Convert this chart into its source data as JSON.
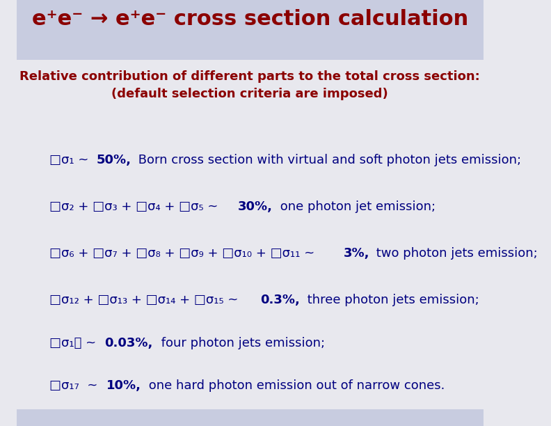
{
  "title": "e⁺e⁻ → e⁺e⁻ cross section calculation",
  "title_color": "#8B0000",
  "header_bg": "#C8CCE0",
  "body_bg": "#E8E8EE",
  "subtitle": "Relative contribution of different parts to the total cross section:\n(default selection criteria are imposed)",
  "subtitle_color": "#8B0000",
  "text_color": "#000080",
  "bold_color": "#000080",
  "lines": [
    {
      "prefix": "□σ₁ ~ ",
      "bold": "50%,",
      "rest": " Born cross section with virtual and soft photon jets emission;"
    },
    {
      "prefix": "□σ₂ + □σ₃ + □σ₄ + □σ₅ ~ ",
      "bold": "30%,",
      "rest": " one photon jet emission;"
    },
    {
      "prefix": "□σ₆ + □σ₇ + □σ₈ + □σ₉ + □σ₁₀ + □σ₁₁ ~ ",
      "bold": "3%,",
      "rest": " two photon jets emission;"
    },
    {
      "prefix": "□σ₁₂ + □σ₁₃ + □σ₁₄ + □σ₁₅ ~ ",
      "bold": "0.3%,",
      "rest": " three photon jets emission;"
    },
    {
      "prefix": "□σ₁⁦ ~ ",
      "bold": "0.03%,",
      "rest": " four photon jets emission;"
    },
    {
      "prefix": "□σ₁₇  ~ ",
      "bold": "10%,",
      "rest": " one hard photon emission out of narrow cones."
    }
  ],
  "figsize": [
    7.92,
    6.12
  ],
  "dpi": 100
}
